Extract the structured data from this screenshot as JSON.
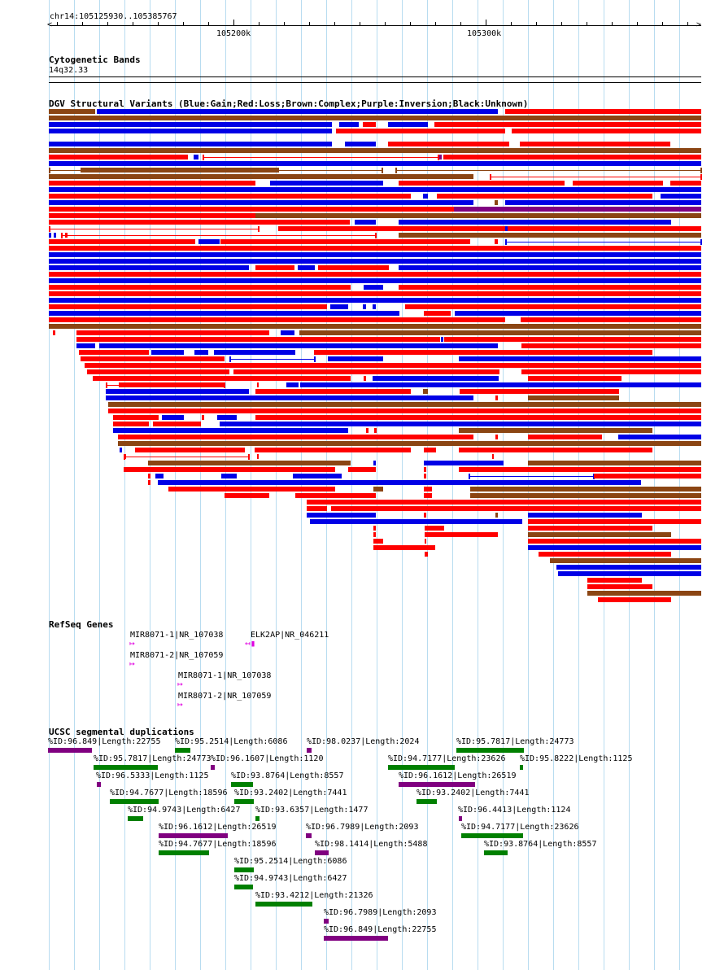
{
  "ruler": {
    "position": "chr14:105125930..105385767",
    "ticks": [
      "105200k",
      "105300k"
    ]
  },
  "tracks": {
    "cytoband": {
      "title": "Cytogenetic Bands",
      "band": "14q32.33"
    },
    "dgv": {
      "title": "DGV Structural Variants (Blue:Gain;Red:Loss;Brown:Complex;Purple:Inversion;Black:Unknown)"
    },
    "refseq": {
      "title": "RefSeq Genes"
    },
    "segdup": {
      "title": "UCSC segmental duplications"
    }
  },
  "colors": {
    "gain": "#0000e6",
    "loss": "#ff0000",
    "complex": "#8b4513",
    "inversion": "#800080",
    "gene": "#e000e0",
    "segdup_green": "#008000",
    "segdup_purple": "#800080",
    "grid": "#b8dcf0"
  },
  "genes": [
    {
      "label": "MIR8071-1|NR_107038",
      "direction": "forward"
    },
    {
      "label": "ELK2AP|NR_046211",
      "direction": "reverse"
    },
    {
      "label": "MIR8071-2|NR_107059",
      "direction": "forward"
    },
    {
      "label": "MIR8071-1|NR_107038",
      "direction": "forward"
    },
    {
      "label": "MIR8071-2|NR_107059",
      "direction": "forward"
    }
  ],
  "segdups": [
    {
      "label": "%ID:96.849|Length:22755",
      "color": "purple"
    },
    {
      "label": "%ID:95.2514|Length:6086",
      "color": "green"
    },
    {
      "label": "%ID:98.0237|Length:2024",
      "color": "purple"
    },
    {
      "label": "%ID:95.7817|Length:24773",
      "color": "green"
    },
    {
      "label": "%ID:95.7817|Length:24773",
      "color": "green"
    },
    {
      "label": "%ID:96.1607|Length:1120",
      "color": "purple"
    },
    {
      "label": "%ID:94.7177|Length:23626",
      "color": "green"
    },
    {
      "label": "%ID:95.8222|Length:1125",
      "color": "green"
    },
    {
      "label": "%ID:96.5333|Length:1125",
      "color": "purple"
    },
    {
      "label": "%ID:93.8764|Length:8557",
      "color": "green"
    },
    {
      "label": "%ID:96.1612|Length:26519",
      "color": "purple"
    },
    {
      "label": "%ID:94.7677|Length:18596",
      "color": "green"
    },
    {
      "label": "%ID:93.2402|Length:7441",
      "color": "green"
    },
    {
      "label": "%ID:93.2402|Length:7441",
      "color": "green"
    },
    {
      "label": "%ID:94.9743|Length:6427",
      "color": "green"
    },
    {
      "label": "%ID:93.6357|Length:1477",
      "color": "green"
    },
    {
      "label": "%ID:96.4413|Length:1124",
      "color": "purple"
    },
    {
      "label": "%ID:96.1612|Length:26519",
      "color": "purple"
    },
    {
      "label": "%ID:96.7989|Length:2093",
      "color": "purple"
    },
    {
      "label": "%ID:94.7177|Length:23626",
      "color": "green"
    },
    {
      "label": "%ID:94.7677|Length:18596",
      "color": "green"
    },
    {
      "label": "%ID:98.1414|Length:5488",
      "color": "purple"
    },
    {
      "label": "%ID:93.8764|Length:8557",
      "color": "green"
    },
    {
      "label": "%ID:95.2514|Length:6086",
      "color": "green"
    },
    {
      "label": "%ID:94.9743|Length:6427",
      "color": "green"
    },
    {
      "label": "%ID:93.4212|Length:21326",
      "color": "green"
    },
    {
      "label": "%ID:96.7989|Length:2093",
      "color": "purple"
    },
    {
      "label": "%ID:96.849|Length:22755",
      "color": "purple"
    }
  ]
}
